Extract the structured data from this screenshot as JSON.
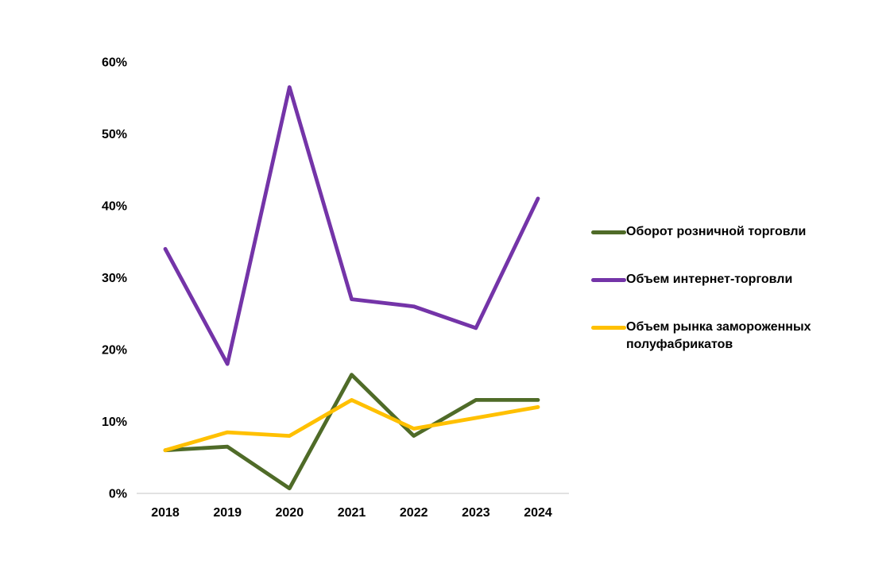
{
  "chart_data": {
    "type": "line",
    "x": [
      "2018",
      "2019",
      "2020",
      "2021",
      "2022",
      "2023",
      "2024"
    ],
    "series": [
      {
        "name": "Оборот розничной торговли",
        "color": "#4F6B28",
        "values": [
          6,
          6.5,
          0.7,
          16.5,
          8,
          13,
          13
        ]
      },
      {
        "name": "Объем интернет-торговли",
        "color": "#7434A8",
        "values": [
          34,
          18,
          56.5,
          27,
          26,
          23,
          41
        ]
      },
      {
        "name": "Объем рынка замороженных полуфабрикатов",
        "color": "#FFC000",
        "values": [
          6,
          8.5,
          8,
          13,
          9,
          10.5,
          12
        ]
      }
    ],
    "yticks": [
      "0%",
      "10%",
      "20%",
      "30%",
      "40%",
      "50%",
      "60%"
    ],
    "ylim": [
      0,
      60
    ],
    "ytick_step": 10,
    "grid": false,
    "legend_position": "right",
    "background_color": "#FFFFFF",
    "axis_line_color": "#D9D9D9",
    "tick_label_color": "#000000"
  }
}
